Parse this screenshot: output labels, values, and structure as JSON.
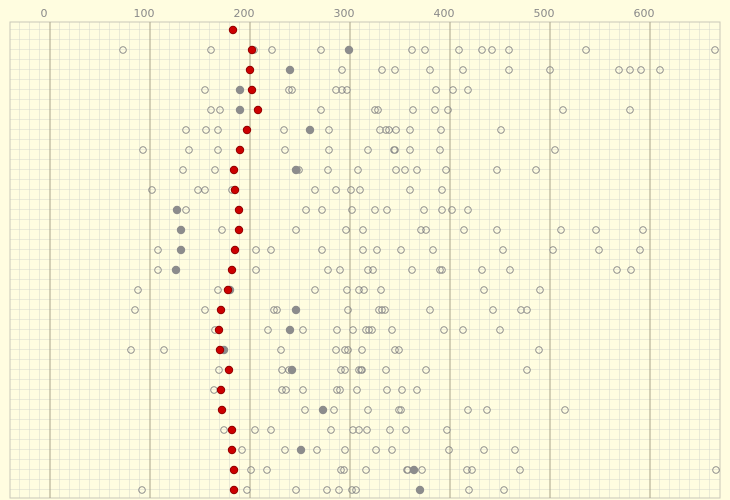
{
  "chart_data": {
    "type": "dotplot",
    "xlim": [
      -40,
      670
    ],
    "xticks": [
      0,
      100,
      200,
      300,
      400,
      500,
      600
    ],
    "grid": true,
    "categories": [
      null,
      null,
      null,
      null,
      null,
      null,
      null,
      null,
      null,
      null,
      null,
      null,
      null,
      null,
      null,
      null,
      null,
      null,
      null,
      null,
      null,
      null,
      null,
      null
    ],
    "series": [
      {
        "color": "#888888",
        "marker": "open",
        "values": [
          [],
          [
            73,
            161,
            204,
            222,
            271,
            362,
            375,
            409,
            432,
            442,
            459,
            536,
            665
          ],
          [
            292,
            332,
            345,
            380,
            413,
            459,
            500,
            569,
            580,
            591,
            610
          ],
          [
            155,
            239,
            242,
            286,
            292,
            297,
            386,
            403,
            418
          ],
          [
            161,
            170,
            271,
            325,
            328,
            363,
            385,
            398,
            513,
            580
          ],
          [
            136,
            156,
            168,
            234,
            279,
            330,
            336,
            339,
            346,
            360,
            391,
            451
          ],
          [
            93,
            139,
            168,
            235,
            279,
            318,
            344,
            345,
            360,
            390,
            505
          ],
          [
            133,
            165,
            247,
            249,
            278,
            308,
            346,
            355,
            367,
            396,
            447,
            486
          ],
          [
            102,
            148,
            155,
            182,
            265,
            286,
            301,
            310,
            360,
            392
          ],
          [
            136,
            256,
            272,
            302,
            325,
            337,
            374,
            392,
            402,
            418
          ],
          [
            172,
            246,
            296,
            313,
            371,
            376,
            414,
            447,
            511,
            546,
            593
          ],
          [
            108,
            206,
            221,
            272,
            313,
            327,
            351,
            383,
            453,
            503,
            549,
            590
          ],
          [
            108,
            206,
            278,
            290,
            318,
            323,
            362,
            390,
            392,
            432,
            460,
            567,
            581
          ],
          [
            88,
            168,
            180,
            265,
            297,
            309,
            314,
            331,
            434,
            490
          ],
          [
            85,
            155,
            224,
            227,
            298,
            329,
            332,
            335,
            380,
            443,
            471,
            477
          ],
          [
            165,
            218,
            253,
            287,
            303,
            316,
            319,
            322,
            342,
            394,
            413,
            450
          ],
          [
            81,
            114,
            231,
            286,
            295,
            298,
            312,
            345,
            349,
            489
          ],
          [
            169,
            232,
            239,
            291,
            295,
            309,
            311,
            312,
            336,
            376,
            477
          ],
          [
            164,
            232,
            236,
            253,
            287,
            290,
            307,
            337,
            352,
            367
          ],
          [
            255,
            284,
            318,
            349,
            351,
            418,
            437,
            515
          ],
          [
            174,
            205,
            221,
            281,
            303,
            309,
            317,
            340,
            356,
            397
          ],
          [
            192,
            235,
            267,
            295,
            326,
            342,
            399,
            434,
            465
          ],
          [
            201,
            217,
            291,
            294,
            316,
            357,
            358,
            372,
            417,
            422,
            470,
            666
          ],
          [
            92,
            197,
            246,
            277,
            289,
            302,
            306,
            419,
            454
          ]
        ]
      },
      {
        "color": "#8c8c8c",
        "marker": "filled",
        "values": [
          [],
          [
            299
          ],
          [
            240
          ],
          [
            190
          ],
          [
            190
          ],
          [
            260
          ],
          [],
          [
            246
          ],
          [],
          [
            127
          ],
          [
            131
          ],
          [
            131
          ],
          [
            126
          ],
          [
            180
          ],
          [
            246
          ],
          [
            240
          ],
          [
            174
          ],
          [
            242
          ],
          [],
          [
            273
          ],
          [],
          [
            251
          ],
          [
            364
          ],
          [
            370
          ]
        ]
      },
      {
        "color": "#cc0000",
        "marker": "filled",
        "values": [
          [
            183
          ],
          [
            202
          ],
          [
            200
          ],
          [
            202
          ],
          [
            208
          ],
          [
            197
          ],
          [
            190
          ],
          [
            184
          ],
          [
            185
          ],
          [
            189
          ],
          [
            189
          ],
          [
            185
          ],
          [
            182
          ],
          [
            178
          ],
          [
            171
          ],
          [
            169
          ],
          [
            170
          ],
          [
            179
          ],
          [
            171
          ],
          [
            172
          ],
          [
            182
          ],
          [
            182
          ],
          [
            184
          ],
          [
            184
          ]
        ]
      }
    ]
  }
}
